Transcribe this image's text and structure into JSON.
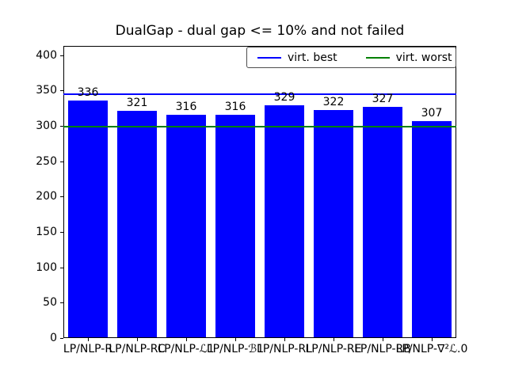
{
  "title": "DualGap - dual gap <= 10% and not failed",
  "legend": {
    "entries": [
      {
        "label": "virt. best",
        "color": "#0000ff"
      },
      {
        "label": "virt. worst",
        "color": "#008000"
      }
    ]
  },
  "chart_data": {
    "type": "bar",
    "title": "DualGap - dual gap <= 10% and not failed",
    "categories": [
      "LP/NLP-R",
      "LP/NLP-RC",
      "LP/NLP-ℒ1",
      "LP/NLP-ℬ1",
      "LP/NLP-RL",
      "LP/NLP-RE",
      "LP/NLP-RB",
      "LP/NLP-∇²ℒ.0"
    ],
    "values": [
      336,
      321,
      316,
      316,
      329,
      322,
      327,
      307
    ],
    "bar_color": "#0000ff",
    "value_labels": true,
    "xlabel": "",
    "ylabel": "",
    "ylim": [
      0,
      413
    ],
    "yticks": [
      0,
      50,
      100,
      150,
      200,
      250,
      300,
      350,
      400
    ],
    "grid": false,
    "hlines": [
      {
        "label": "virt. best",
        "value": 345,
        "color": "#0000ff"
      },
      {
        "label": "virt. worst",
        "value": 299,
        "color": "#008000"
      }
    ],
    "legend_position": "upper right"
  }
}
